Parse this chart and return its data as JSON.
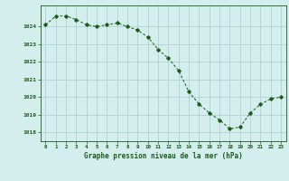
{
  "x": [
    0,
    1,
    2,
    3,
    4,
    5,
    6,
    7,
    8,
    9,
    10,
    11,
    12,
    13,
    14,
    15,
    16,
    17,
    18,
    19,
    20,
    21,
    22,
    23
  ],
  "y": [
    1024.1,
    1024.6,
    1024.6,
    1024.4,
    1024.1,
    1024.0,
    1024.1,
    1024.2,
    1024.0,
    1023.8,
    1023.4,
    1022.7,
    1022.2,
    1021.5,
    1020.3,
    1019.6,
    1019.1,
    1018.7,
    1018.2,
    1018.3,
    1019.1,
    1019.6,
    1019.9,
    1020.0
  ],
  "line_color": "#1a5c1a",
  "marker": "D",
  "marker_size": 1.8,
  "bg_color": "#d4eeee",
  "grid_color": "#aacccc",
  "xlabel": "Graphe pression niveau de la mer (hPa)",
  "xlabel_color": "#1a5c1a",
  "tick_color": "#1a5c1a",
  "ylim": [
    1017.5,
    1025.2
  ],
  "yticks": [
    1018,
    1019,
    1020,
    1021,
    1022,
    1023,
    1024
  ],
  "xlim": [
    -0.5,
    23.5
  ],
  "xticks": [
    0,
    1,
    2,
    3,
    4,
    5,
    6,
    7,
    8,
    9,
    10,
    11,
    12,
    13,
    14,
    15,
    16,
    17,
    18,
    19,
    20,
    21,
    22,
    23
  ]
}
